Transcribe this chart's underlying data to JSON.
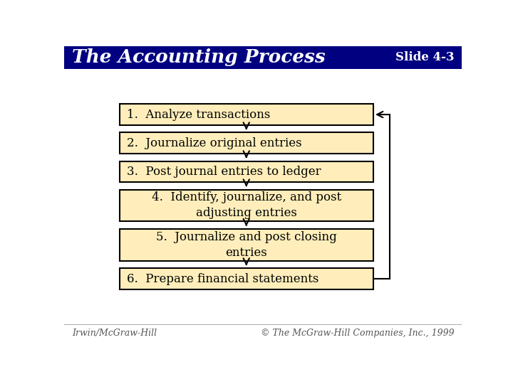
{
  "title": "The Accounting Process",
  "slide_number": "Slide 4-3",
  "header_bg": "#000080",
  "header_text_color": "#FFFFFF",
  "body_bg": "#FFFFFF",
  "box_bg": "#FFEEBB",
  "box_edge": "#000000",
  "arrow_color": "#000000",
  "steps": [
    "1.  Analyze transactions",
    "2.  Journalize original entries",
    "3.  Post journal entries to ledger",
    "4.  Identify, journalize, and post\nadjusting entries",
    "5.  Journalize and post closing\nentries",
    "6.  Prepare financial statements"
  ],
  "step_centered": [
    false,
    false,
    false,
    true,
    true,
    false
  ],
  "footer_left": "Irwin/McGraw-Hill",
  "footer_right": "© The McGraw-Hill Companies, Inc., 1999",
  "footer_color": "#555555"
}
